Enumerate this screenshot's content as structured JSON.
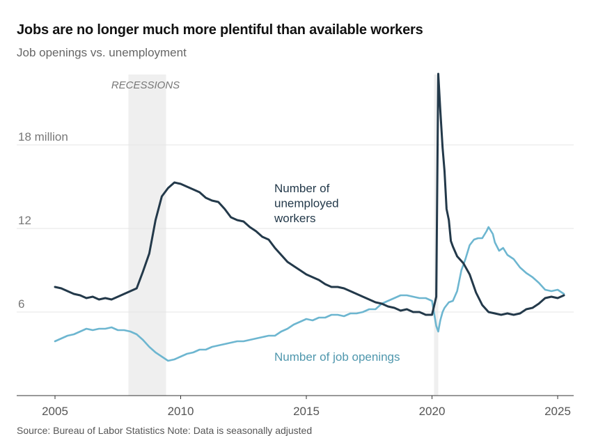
{
  "title": "Jobs are no longer much more plentiful than available workers",
  "subtitle": "Job openings vs. unemployment",
  "source": "Source: Bureau of Labor Statistics     Note: Data is seasonally adjusted",
  "colors": {
    "unemployed": "#23394a",
    "openings": "#6db6d0",
    "recession": "#efefef",
    "grid": "#e4e4e4",
    "axis": "#333333"
  },
  "chart_data": {
    "type": "line",
    "title": "Jobs are no longer much more plentiful than available workers",
    "subtitle": "Job openings vs. unemployment",
    "xlim": [
      2005,
      2025.3
    ],
    "ylim": [
      0,
      23
    ],
    "x_ticks": [
      "2005",
      "2010",
      "2015",
      "2020",
      "2025"
    ],
    "y_ticks": [
      {
        "value": 6,
        "label": "6"
      },
      {
        "value": 12,
        "label": "12"
      },
      {
        "value": 18,
        "label": "18 million"
      }
    ],
    "recession_label": "RECESSIONS",
    "recessions": [
      [
        2007.92,
        2009.42
      ],
      [
        2020.08,
        2020.25
      ]
    ],
    "grid": true,
    "series": [
      {
        "name": "Number of unemployed workers",
        "label_lines": [
          "Number of",
          "unemployed",
          "workers"
        ],
        "x": [
          2005.0,
          2005.25,
          2005.5,
          2005.75,
          2006.0,
          2006.25,
          2006.5,
          2006.75,
          2007.0,
          2007.25,
          2007.5,
          2007.75,
          2008.0,
          2008.25,
          2008.5,
          2008.75,
          2009.0,
          2009.25,
          2009.5,
          2009.75,
          2010.0,
          2010.25,
          2010.5,
          2010.75,
          2011.0,
          2011.25,
          2011.5,
          2011.75,
          2012.0,
          2012.25,
          2012.5,
          2012.75,
          2013.0,
          2013.25,
          2013.5,
          2013.75,
          2014.0,
          2014.25,
          2014.5,
          2014.75,
          2015.0,
          2015.25,
          2015.5,
          2015.75,
          2016.0,
          2016.25,
          2016.5,
          2016.75,
          2017.0,
          2017.25,
          2017.5,
          2017.75,
          2018.0,
          2018.25,
          2018.5,
          2018.75,
          2019.0,
          2019.25,
          2019.5,
          2019.75,
          2020.0,
          2020.17,
          2020.25,
          2020.33,
          2020.42,
          2020.5,
          2020.58,
          2020.67,
          2020.75,
          2020.83,
          2021.0,
          2021.25,
          2021.5,
          2021.75,
          2022.0,
          2022.25,
          2022.5,
          2022.75,
          2023.0,
          2023.25,
          2023.5,
          2023.75,
          2024.0,
          2024.25,
          2024.5,
          2024.75,
          2025.0,
          2025.25
        ],
        "values": [
          7.8,
          7.7,
          7.5,
          7.3,
          7.2,
          7.0,
          7.1,
          6.9,
          7.0,
          6.9,
          7.1,
          7.3,
          7.5,
          7.7,
          8.9,
          10.2,
          12.6,
          14.3,
          14.9,
          15.3,
          15.2,
          15.0,
          14.8,
          14.6,
          14.2,
          14.0,
          13.9,
          13.4,
          12.8,
          12.6,
          12.5,
          12.1,
          11.8,
          11.4,
          11.2,
          10.6,
          10.1,
          9.6,
          9.3,
          9.0,
          8.7,
          8.5,
          8.3,
          8.0,
          7.8,
          7.8,
          7.7,
          7.5,
          7.3,
          7.1,
          6.9,
          6.7,
          6.6,
          6.4,
          6.3,
          6.1,
          6.2,
          6.0,
          6.0,
          5.8,
          5.8,
          7.1,
          23.1,
          20.5,
          17.8,
          16.1,
          13.4,
          12.6,
          11.1,
          10.7,
          10.0,
          9.5,
          8.7,
          7.4,
          6.5,
          6.0,
          5.9,
          5.8,
          5.9,
          5.8,
          5.9,
          6.2,
          6.3,
          6.6,
          7.0,
          7.1,
          7.0,
          7.2
        ]
      },
      {
        "name": "Number of job openings",
        "label_lines": [
          "Number of job openings"
        ],
        "x": [
          2005.0,
          2005.25,
          2005.5,
          2005.75,
          2006.0,
          2006.25,
          2006.5,
          2006.75,
          2007.0,
          2007.25,
          2007.5,
          2007.75,
          2008.0,
          2008.25,
          2008.5,
          2008.75,
          2009.0,
          2009.25,
          2009.5,
          2009.75,
          2010.0,
          2010.25,
          2010.5,
          2010.75,
          2011.0,
          2011.25,
          2011.5,
          2011.75,
          2012.0,
          2012.25,
          2012.5,
          2012.75,
          2013.0,
          2013.25,
          2013.5,
          2013.75,
          2014.0,
          2014.25,
          2014.5,
          2014.75,
          2015.0,
          2015.25,
          2015.5,
          2015.75,
          2016.0,
          2016.25,
          2016.5,
          2016.75,
          2017.0,
          2017.25,
          2017.5,
          2017.75,
          2018.0,
          2018.25,
          2018.5,
          2018.75,
          2019.0,
          2019.25,
          2019.5,
          2019.75,
          2020.0,
          2020.17,
          2020.25,
          2020.33,
          2020.42,
          2020.5,
          2020.67,
          2020.83,
          2021.0,
          2021.17,
          2021.33,
          2021.5,
          2021.67,
          2021.83,
          2022.0,
          2022.17,
          2022.25,
          2022.42,
          2022.5,
          2022.67,
          2022.83,
          2023.0,
          2023.25,
          2023.5,
          2023.75,
          2024.0,
          2024.25,
          2024.5,
          2024.75,
          2025.0,
          2025.25
        ],
        "values": [
          3.9,
          4.1,
          4.3,
          4.4,
          4.6,
          4.8,
          4.7,
          4.8,
          4.8,
          4.9,
          4.7,
          4.7,
          4.6,
          4.4,
          4.0,
          3.5,
          3.1,
          2.8,
          2.5,
          2.6,
          2.8,
          3.0,
          3.1,
          3.3,
          3.3,
          3.5,
          3.6,
          3.7,
          3.8,
          3.9,
          3.9,
          4.0,
          4.1,
          4.2,
          4.3,
          4.3,
          4.6,
          4.8,
          5.1,
          5.3,
          5.5,
          5.4,
          5.6,
          5.6,
          5.8,
          5.8,
          5.7,
          5.9,
          5.9,
          6.0,
          6.2,
          6.2,
          6.6,
          6.8,
          7.0,
          7.2,
          7.2,
          7.1,
          7.0,
          7.0,
          6.8,
          5.0,
          4.6,
          5.4,
          6.0,
          6.3,
          6.7,
          6.8,
          7.5,
          9.0,
          9.8,
          10.8,
          11.2,
          11.3,
          11.3,
          11.8,
          12.1,
          11.6,
          11.0,
          10.4,
          10.6,
          10.1,
          9.8,
          9.2,
          8.8,
          8.5,
          8.1,
          7.6,
          7.5,
          7.6,
          7.3
        ]
      }
    ]
  }
}
